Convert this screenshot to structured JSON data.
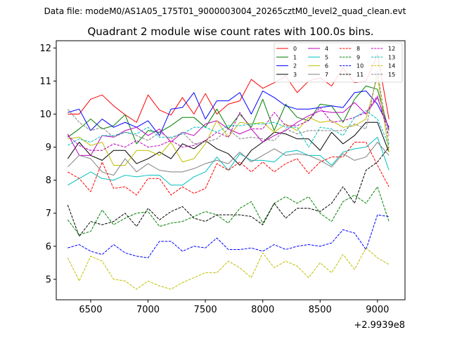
{
  "suptitle": "Data file: modeM0/AS1A05_175T01_9000003004_20265cztM0_level2_quad_clean.evt",
  "chart_data": {
    "type": "line",
    "title": "Quadrant 2 module wise count rates with 100.0s bins.",
    "xlabel": "",
    "ylabel": "",
    "x_offset_label": "+2.9939e8",
    "xlim": [
      6200,
      9240
    ],
    "ylim": [
      4.38,
      12.22
    ],
    "xticks": [
      6500,
      7000,
      7500,
      8000,
      8500,
      9000
    ],
    "yticks": [
      5,
      6,
      7,
      8,
      9,
      10,
      11,
      12
    ],
    "x": [
      6300,
      6400,
      6500,
      6600,
      6700,
      6800,
      6900,
      7000,
      7100,
      7200,
      7300,
      7400,
      7500,
      7600,
      7700,
      7800,
      7900,
      8000,
      8100,
      8200,
      8300,
      8400,
      8500,
      8600,
      8700,
      8800,
      8900,
      9000,
      9100
    ],
    "legend_position": "top-right",
    "series": [
      {
        "name": "0",
        "color": "#ff0000",
        "dash": "solid",
        "values": [
          10.0,
          10.0,
          10.45,
          10.58,
          10.25,
          9.98,
          9.75,
          10.58,
          10.12,
          9.97,
          10.5,
          10.0,
          10.62,
          10.0,
          10.3,
          10.4,
          11.05,
          10.78,
          10.95,
          11.15,
          10.65,
          11.0,
          11.1,
          10.85,
          11.4,
          10.95,
          11.0,
          11.8,
          9.85
        ]
      },
      {
        "name": "1",
        "color": "#008000",
        "dash": "solid",
        "values": [
          9.3,
          9.55,
          9.85,
          9.55,
          9.65,
          9.98,
          9.1,
          9.5,
          9.45,
          9.65,
          9.9,
          9.9,
          9.6,
          10.15,
          9.55,
          10.0,
          9.6,
          10.45,
          9.5,
          10.3,
          9.9,
          9.8,
          10.3,
          10.25,
          9.75,
          10.45,
          10.85,
          10.75,
          9.5
        ]
      },
      {
        "name": "2",
        "color": "#0000ff",
        "dash": "solid",
        "values": [
          10.05,
          10.15,
          9.5,
          9.85,
          9.6,
          9.75,
          9.6,
          9.8,
          9.35,
          10.15,
          10.2,
          10.65,
          9.85,
          10.4,
          10.4,
          10.65,
          10.0,
          10.7,
          10.5,
          10.25,
          10.15,
          10.15,
          10.2,
          10.25,
          10.2,
          10.65,
          10.7,
          10.3,
          9.6
        ]
      },
      {
        "name": "3",
        "color": "#000000",
        "dash": "solid",
        "values": [
          8.65,
          9.15,
          8.75,
          8.6,
          8.9,
          8.9,
          8.5,
          8.65,
          8.85,
          8.65,
          9.1,
          8.95,
          9.2,
          8.95,
          8.8,
          8.45,
          8.9,
          9.15,
          9.45,
          9.4,
          9.25,
          9.25,
          8.9,
          9.45,
          9.1,
          9.35,
          9.75,
          9.75,
          8.85
        ]
      },
      {
        "name": "4",
        "color": "#bf00bf",
        "dash": "solid",
        "values": [
          9.4,
          8.75,
          8.75,
          9.35,
          9.3,
          9.5,
          9.6,
          9.35,
          9.55,
          9.15,
          9.45,
          9.35,
          9.7,
          9.8,
          9.55,
          9.4,
          9.55,
          9.15,
          9.35,
          9.5,
          9.75,
          9.95,
          10.1,
          10.05,
          10.05,
          10.35,
          10.0,
          10.5,
          9.55
        ]
      },
      {
        "name": "5",
        "color": "#00bfbf",
        "dash": "solid",
        "values": [
          7.85,
          8.05,
          8.25,
          8.05,
          8.0,
          8.15,
          8.1,
          8.15,
          8.15,
          7.85,
          7.85,
          8.1,
          8.25,
          8.7,
          8.3,
          8.8,
          8.6,
          8.6,
          8.55,
          8.85,
          8.9,
          8.75,
          8.75,
          8.45,
          8.85,
          8.95,
          9.0,
          9.3,
          8.3
        ]
      },
      {
        "name": "6",
        "color": "#bfbf00",
        "dash": "solid",
        "values": [
          9.25,
          9.3,
          9.05,
          9.15,
          8.45,
          8.45,
          8.9,
          8.9,
          8.75,
          9.15,
          8.55,
          8.65,
          9.1,
          9.8,
          9.3,
          9.75,
          9.7,
          9.75,
          9.45,
          9.7,
          9.5,
          9.9,
          9.75,
          9.8,
          9.6,
          9.65,
          9.85,
          11.15,
          8.85
        ]
      },
      {
        "name": "7",
        "color": "#808080",
        "dash": "solid",
        "values": [
          8.4,
          8.75,
          8.65,
          8.25,
          8.15,
          8.65,
          8.25,
          8.5,
          8.3,
          8.25,
          8.25,
          8.35,
          8.5,
          8.6,
          8.5,
          8.85,
          8.55,
          8.75,
          8.95,
          8.75,
          8.8,
          8.75,
          8.6,
          8.4,
          8.8,
          8.6,
          8.7,
          9.15,
          8.75
        ]
      },
      {
        "name": "8",
        "color": "#ff0000",
        "dash": "dashed",
        "values": [
          8.25,
          8.05,
          7.65,
          8.55,
          7.75,
          7.8,
          7.55,
          8.05,
          8.05,
          7.55,
          7.8,
          7.6,
          7.75,
          8.5,
          8.3,
          8.55,
          8.25,
          8.55,
          8.25,
          8.5,
          8.65,
          8.2,
          8.55,
          8.7,
          8.7,
          9.15,
          9.15,
          8.45,
          7.8
        ]
      },
      {
        "name": "9",
        "color": "#008000",
        "dash": "dashed",
        "values": [
          6.8,
          6.35,
          6.45,
          7.1,
          6.65,
          6.85,
          7.0,
          7.05,
          6.6,
          6.7,
          6.75,
          6.9,
          7.05,
          6.95,
          6.7,
          7.15,
          7.35,
          6.7,
          7.3,
          7.5,
          7.3,
          7.5,
          7.0,
          6.75,
          7.35,
          7.55,
          7.3,
          7.8,
          6.75
        ]
      },
      {
        "name": "10",
        "color": "#0000ff",
        "dash": "dashed",
        "values": [
          5.95,
          6.05,
          5.85,
          5.75,
          6.05,
          5.8,
          5.7,
          5.65,
          6.15,
          6.15,
          5.85,
          6.0,
          5.95,
          6.25,
          5.9,
          5.9,
          5.95,
          5.85,
          6.05,
          5.9,
          6.0,
          6.05,
          6.0,
          6.1,
          6.5,
          6.4,
          5.9,
          6.95,
          6.9
        ]
      },
      {
        "name": "11",
        "color": "#000000",
        "dash": "dashed",
        "values": [
          7.25,
          6.3,
          6.75,
          6.65,
          6.75,
          7.0,
          6.6,
          7.15,
          6.8,
          7.05,
          7.2,
          6.85,
          6.75,
          6.95,
          6.95,
          6.95,
          6.9,
          6.65,
          7.3,
          6.85,
          7.15,
          7.15,
          7.05,
          7.3,
          7.8,
          7.3,
          8.3,
          8.55,
          9.0
        ]
      },
      {
        "name": "12",
        "color": "#bf00bf",
        "dash": "dashed",
        "values": [
          9.35,
          9.05,
          8.9,
          8.9,
          9.1,
          9.0,
          9.2,
          9.0,
          9.05,
          9.2,
          9.0,
          9.05,
          9.2,
          9.45,
          9.3,
          10.05,
          9.55,
          9.55,
          10.05,
          9.65,
          9.65,
          9.8,
          10.2,
          9.75,
          9.8,
          9.9,
          10.05,
          10.55,
          9.35
        ]
      },
      {
        "name": "13",
        "color": "#00bfbf",
        "dash": "dashed",
        "values": [
          9.05,
          9.25,
          9.15,
          9.35,
          9.35,
          9.45,
          9.4,
          9.6,
          9.3,
          9.3,
          9.4,
          9.6,
          9.6,
          9.45,
          9.65,
          9.65,
          9.7,
          9.7,
          9.75,
          9.6,
          9.6,
          9.0,
          9.6,
          9.55,
          9.35,
          9.9,
          10.1,
          9.85,
          9.05
        ]
      },
      {
        "name": "14",
        "color": "#bfbf00",
        "dash": "dashed",
        "values": [
          5.65,
          4.95,
          5.7,
          5.55,
          5.0,
          4.95,
          4.7,
          4.95,
          4.8,
          4.7,
          4.9,
          5.05,
          5.2,
          5.2,
          5.55,
          5.35,
          5.05,
          5.8,
          5.35,
          5.55,
          5.4,
          5.05,
          5.5,
          5.2,
          5.75,
          5.3,
          5.95,
          5.65,
          5.45
        ]
      },
      {
        "name": "15",
        "color": "#808080",
        "dash": "dashed",
        "values": [
          10.15,
          9.75,
          9.5,
          9.6,
          9.3,
          9.45,
          9.35,
          9.2,
          9.45,
          9.25,
          9.45,
          9.1,
          9.15,
          9.25,
          9.55,
          9.25,
          9.3,
          9.25,
          9.2,
          9.55,
          9.4,
          9.5,
          9.5,
          9.5,
          9.5,
          9.7,
          9.55,
          11.3,
          9.1
        ]
      }
    ]
  }
}
